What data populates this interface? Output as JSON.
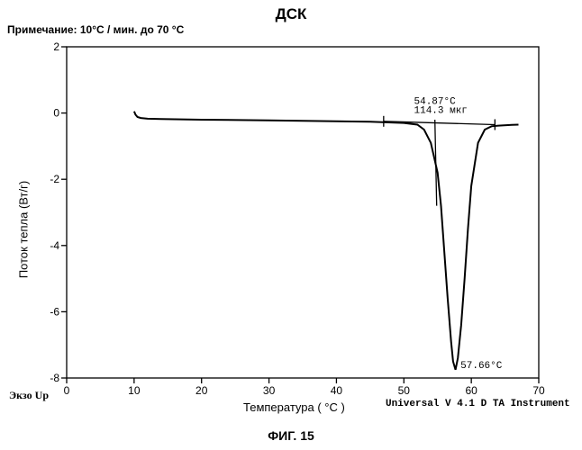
{
  "header": {
    "title": "ДСК",
    "note": "Примечание: 10°C / мин. до 70 °C"
  },
  "footer": {
    "exo_label": "Экзо Up",
    "instrument": "Universal V 4.1 D TA Instrument",
    "figure_caption": "ФИГ. 15"
  },
  "chart_data": {
    "type": "line",
    "title": "ДСК",
    "xlabel": "Температура ( °C )",
    "ylabel": "Поток тепла (Вт/г)",
    "xlim": [
      0,
      70
    ],
    "ylim": [
      -8,
      2
    ],
    "x_ticks": [
      0,
      10,
      20,
      30,
      40,
      50,
      60,
      70
    ],
    "y_ticks": [
      2,
      0,
      -2,
      -4,
      -6,
      -8
    ],
    "grid": false,
    "series": [
      {
        "x": [
          10.0,
          10.2,
          10.5,
          11.0,
          12.0,
          14.0,
          20.0,
          30.0,
          40.0,
          45.0,
          50.0,
          52.0,
          53.0,
          54.0,
          55.0,
          55.5,
          56.0,
          56.5,
          57.0,
          57.3,
          57.66,
          58.0,
          58.5,
          59.0,
          59.5,
          60.0,
          61.0,
          62.0,
          63.0,
          64.0,
          66.0,
          67.0
        ],
        "y": [
          0.05,
          -0.05,
          -0.12,
          -0.15,
          -0.17,
          -0.18,
          -0.2,
          -0.22,
          -0.25,
          -0.26,
          -0.3,
          -0.35,
          -0.5,
          -0.9,
          -1.8,
          -2.8,
          -4.2,
          -5.6,
          -6.9,
          -7.5,
          -7.75,
          -7.4,
          -6.4,
          -5.0,
          -3.5,
          -2.2,
          -0.9,
          -0.5,
          -0.4,
          -0.38,
          -0.36,
          -0.35
        ]
      }
    ],
    "baseline": {
      "x": [
        47,
        63.5
      ],
      "y": [
        -0.25,
        -0.35
      ]
    },
    "onset_line": {
      "x": [
        54.6,
        54.87
      ],
      "y": [
        -0.2,
        -2.8
      ]
    },
    "annotations": {
      "onset_temp": "54.87°C",
      "enthalpy": "114.3 мкг",
      "peak_temp": "57.66°C"
    }
  }
}
